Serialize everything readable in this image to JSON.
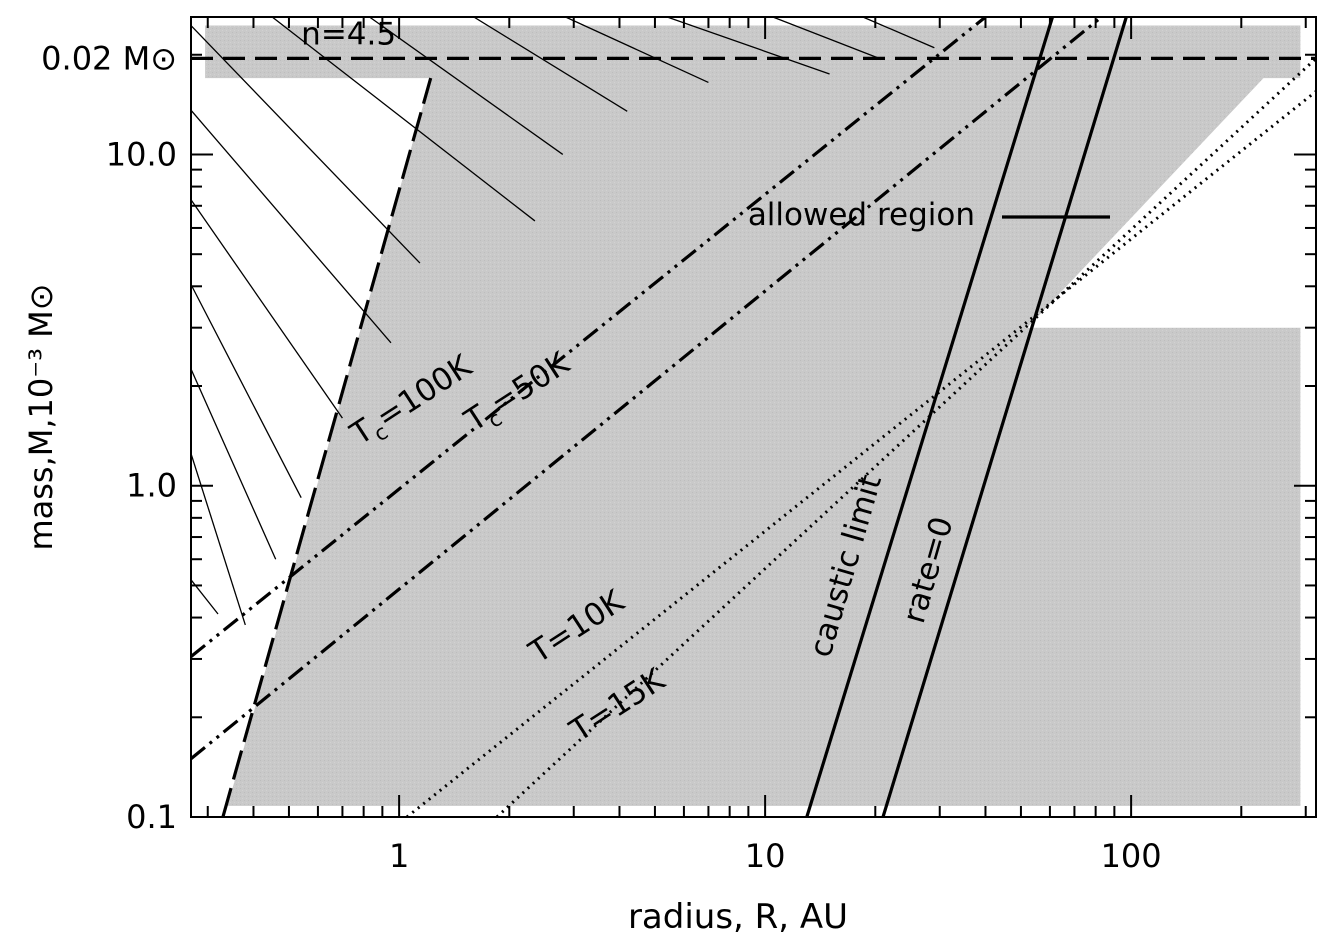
{
  "chart_data": {
    "type": "line",
    "title": "",
    "xlabel": "radius, R, AU",
    "ylabel": "mass,M,10⁻³ M⊙",
    "x_scale": "log",
    "y_scale": "log",
    "xlim": [
      0.27,
      320
    ],
    "ylim": [
      0.1,
      26
    ],
    "xticks": [
      {
        "value": 1,
        "label": "1"
      },
      {
        "value": 10,
        "label": "10"
      },
      {
        "value": 100,
        "label": "100"
      }
    ],
    "yticks": [
      {
        "value": 0.1,
        "label": "0.1"
      },
      {
        "value": 1.0,
        "label": "1.0"
      },
      {
        "value": 10.0,
        "label": "10.0"
      },
      {
        "value": 19.5,
        "label": "0.02 M⊙"
      }
    ],
    "fill_color": "#c8c8c8",
    "line_color": "#000000",
    "regions": [
      {
        "name": "allowed region",
        "label": "allowed region",
        "points": [
          [
            0.34,
            0.108
          ],
          [
            1.22,
            17.0
          ],
          [
            0.295,
            17.0
          ],
          [
            0.295,
            24.5
          ],
          [
            290,
            24.5
          ],
          [
            290,
            17.0
          ],
          [
            230,
            17.0
          ],
          [
            52,
            3.0
          ],
          [
            290,
            3.0
          ],
          [
            290,
            0.108
          ]
        ]
      }
    ],
    "series": [
      {
        "label": "n=4.5",
        "style": "dashed",
        "points": [
          [
            0.27,
            19.5
          ],
          [
            320,
            19.5
          ]
        ]
      },
      {
        "label": "",
        "style": "long-dashed",
        "points": [
          [
            0.33,
            0.1
          ],
          [
            1.22,
            17.0
          ]
        ]
      },
      {
        "label": "Tc=100K",
        "style": "dash-dot-dot",
        "points": [
          [
            0.27,
            0.305
          ],
          [
            40,
            26
          ]
        ]
      },
      {
        "label": "Tc=50K",
        "style": "dash-dot-dot",
        "points": [
          [
            0.27,
            0.15
          ],
          [
            83,
            26
          ]
        ]
      },
      {
        "label": "T=10K",
        "style": "dotted",
        "points": [
          [
            1.05,
            0.1
          ],
          [
            320,
            15.5
          ]
        ]
      },
      {
        "label": "T=15K",
        "style": "dotted",
        "points": [
          [
            1.85,
            0.1
          ],
          [
            320,
            19.5
          ]
        ]
      },
      {
        "label": "caustic limit",
        "style": "solid",
        "points": [
          [
            13.0,
            0.1
          ],
          [
            61,
            26
          ]
        ]
      },
      {
        "label": "rate=0",
        "style": "solid",
        "points": [
          [
            21.0,
            0.1
          ],
          [
            97,
            26
          ]
        ]
      }
    ],
    "hatch_lines": [
      [
        [
          0.27,
          24.5
        ],
        [
          1.14,
          4.7
        ]
      ],
      [
        [
          0.27,
          13.6
        ],
        [
          0.95,
          2.7
        ]
      ],
      [
        [
          0.27,
          7.3
        ],
        [
          0.7,
          1.6
        ]
      ],
      [
        [
          0.27,
          4.05
        ],
        [
          0.54,
          0.92
        ]
      ],
      [
        [
          0.27,
          2.25
        ],
        [
          0.46,
          0.6
        ]
      ],
      [
        [
          0.27,
          1.25
        ],
        [
          0.38,
          0.38
        ]
      ],
      [
        [
          0.27,
          0.52
        ],
        [
          0.32,
          0.41
        ]
      ],
      [
        [
          0.45,
          26
        ],
        [
          2.35,
          6.3
        ]
      ],
      [
        [
          0.83,
          26
        ],
        [
          2.8,
          10.0
        ]
      ],
      [
        [
          1.6,
          26
        ],
        [
          4.2,
          13.5
        ]
      ],
      [
        [
          2.85,
          26
        ],
        [
          7.0,
          16.5
        ]
      ],
      [
        [
          5.4,
          26
        ],
        [
          15.0,
          17.5
        ]
      ],
      [
        [
          10.5,
          26
        ],
        [
          20.5,
          19.5
        ]
      ],
      [
        [
          18.5,
          26
        ],
        [
          29,
          21.0
        ]
      ]
    ],
    "legend": {
      "label": "allowed region",
      "position": "upper-right"
    },
    "annotations": [
      {
        "text": "n=4.5",
        "x": 0.54,
        "y": 21.5,
        "angle": 0
      },
      {
        "text": "allowed region",
        "x": 0.0,
        "y": 0.0,
        "angle": 0
      },
      {
        "text": "T",
        "sub": "c",
        "text2": "=100K",
        "x": 0.78,
        "y": 1.32,
        "angle": -33
      },
      {
        "text": "T",
        "sub": "c",
        "text2": "=50K",
        "x": 1.6,
        "y": 1.45,
        "angle": -33
      },
      {
        "text": "T=10K",
        "x": 2.4,
        "y": 0.29,
        "angle": -33
      },
      {
        "text": "T=15K",
        "x": 3.1,
        "y": 0.168,
        "angle": -33
      },
      {
        "text": "caustic limit",
        "x": 15.0,
        "y": 0.3,
        "angle": -74
      },
      {
        "text": "rate=0",
        "x": 27.0,
        "y": 0.38,
        "angle": -74
      }
    ]
  }
}
